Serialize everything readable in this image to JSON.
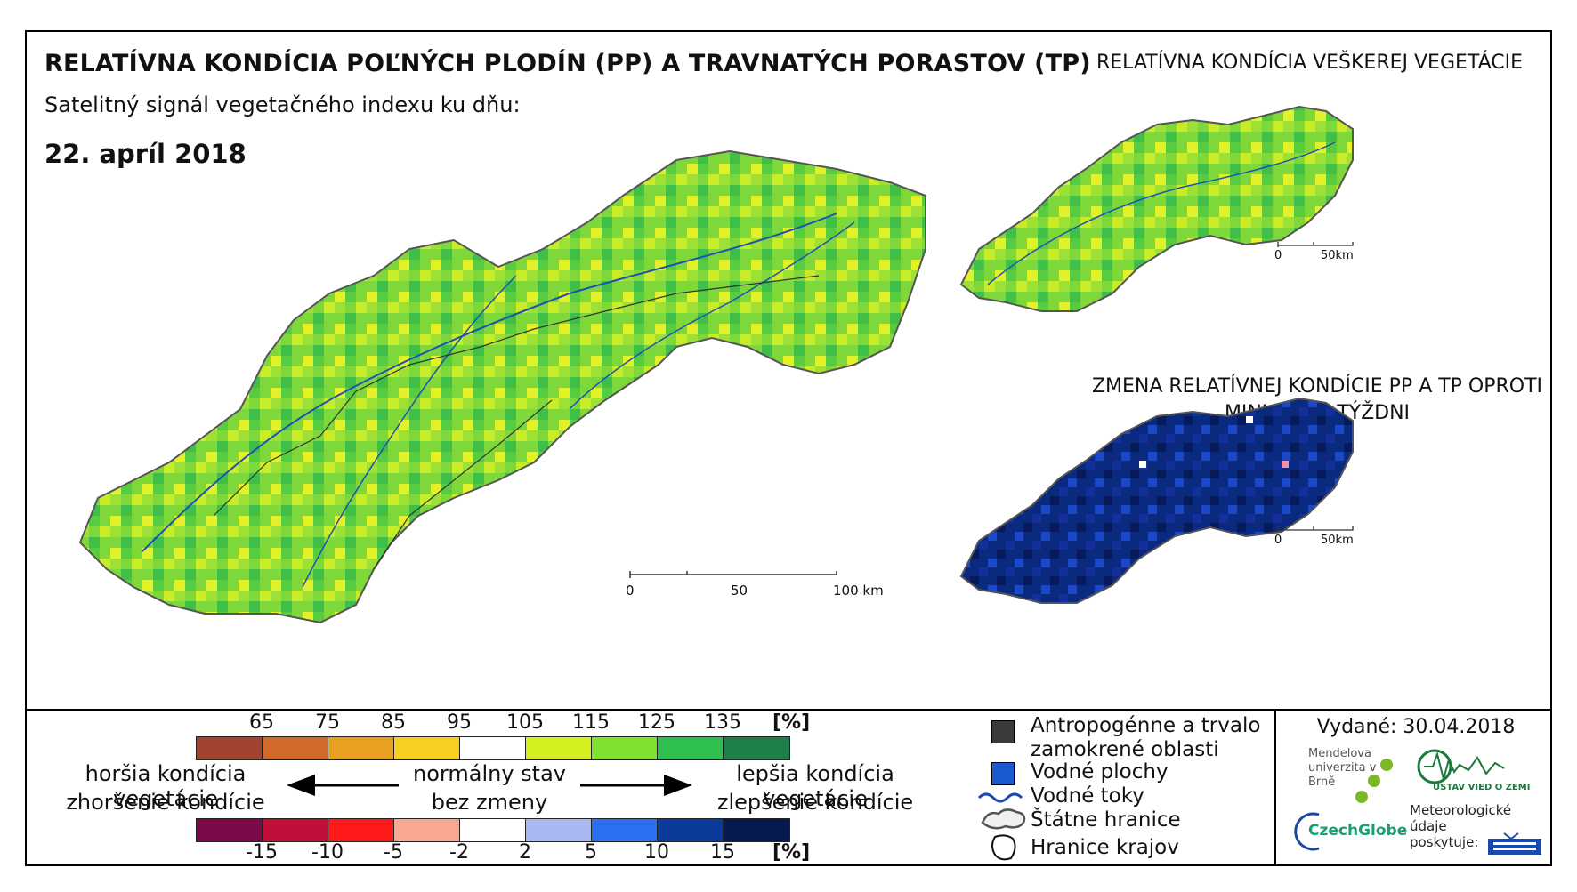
{
  "title": "RELATÍVNA KONDÍCIA POĽNÝCH PLODÍN (PP) A TRAVNATÝCH PORASTOV (TP)",
  "subtitle": "Satelitný signál vegetačného indexu ku dňu:",
  "date": "22. apríl 2018",
  "side_title": "RELATÍVNA KONDÍCIA VEŠKEREJ VEGETÁCIE",
  "change_title": "ZMENA RELATÍVNEJ KONDÍCIE PP A TP OPROTI MINULÉMU TÝŽDNI",
  "main_scale": {
    "labels": [
      "0",
      "50",
      "100 km"
    ]
  },
  "small_scale": {
    "labels": [
      "0",
      "50km"
    ]
  },
  "condition_scale": {
    "ticks": [
      "65",
      "75",
      "85",
      "95",
      "105",
      "115",
      "125",
      "135"
    ],
    "unit": "[%]",
    "colors": [
      "#a0432f",
      "#d2692a",
      "#e8a020",
      "#f5d020",
      "#ffffff",
      "#d4f020",
      "#80e030",
      "#2fbf50",
      "#1f7f4a"
    ]
  },
  "change_scale": {
    "ticks": [
      "-15",
      "-10",
      "-5",
      "-2",
      "2",
      "5",
      "10",
      "15"
    ],
    "unit": "[%]",
    "colors": [
      "#7a0a4a",
      "#c0103a",
      "#ff1a1a",
      "#f8a890",
      "#ffffff",
      "#a8b8f0",
      "#2a70f0",
      "#0a3a9a",
      "#061a50"
    ]
  },
  "descriptions": {
    "worse_condition": "horšia kondícia vegetácie",
    "worse_change": "zhoršenie kondície",
    "normal_state": "normálny stav",
    "no_change": "bez zmeny",
    "better_condition": "lepšia kondícia vegetácie",
    "better_change": "zlepšenie kondície"
  },
  "map_legend": {
    "anthropogenic": "Antropogénne a trvalo zamokrené oblasti",
    "water_bodies": "Vodné plochy",
    "rivers": "Vodné toky",
    "state_borders": "Štátne hranice",
    "region_borders": "Hranice krajov"
  },
  "issued": "Vydané: 30.04.2018",
  "logos": {
    "mendel": "Mendelova univerzita v Brně",
    "czechglobe": "CzechGlobe",
    "uvoz": "ÚSTAV VIED O ZEMI",
    "shmu_text": "Meteorologické údaje poskytuje:"
  }
}
